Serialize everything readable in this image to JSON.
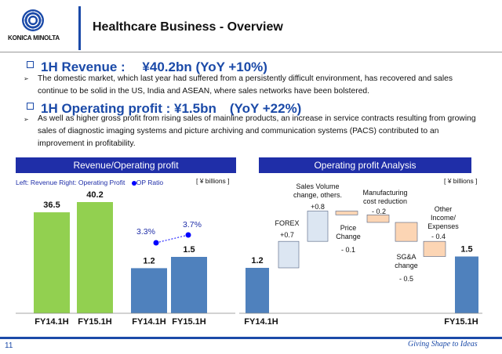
{
  "logo": {
    "text": "KONICA MINOLTA"
  },
  "title": "Healthcare Business - Overview",
  "sections": [
    {
      "heading": "1H Revenue :　 ¥40.2bn  (YoY +10%)",
      "bullet": "The domestic market, which last year had suffered from a persistently difficult environment, has recovered and sales continue to be solid in the US, India and ASEAN, where sales networks have been bolstered."
    },
    {
      "heading": "1H Operating profit : ¥1.5bn　(YoY +22%)",
      "bullet": "As well as higher gross profit from rising sales of mainline products, an increase in service contracts resulting from growing sales of diagnostic imaging systems and picture archiving and communication systems (PACS) contributed to an improvement in profitability."
    }
  ],
  "left_panel": {
    "title": "Revenue/Operating profit",
    "legend": "Left: Revenue  Right: Operating Profit",
    "legend_dot": "OP Ratio",
    "unit": "[ ¥ billions ]"
  },
  "right_panel": {
    "title": "Operating profit Analysis",
    "unit": "[ ¥ billions ]"
  },
  "chart_data": [
    {
      "type": "bar",
      "categories": [
        "FY14.1H",
        "FY15.1H"
      ],
      "series": [
        {
          "values": [
            36.5,
            40.2
          ],
          "color": "#92d050"
        }
      ],
      "labels": [
        "36.5",
        "40.2"
      ]
    },
    {
      "type": "bar",
      "categories": [
        "FY14.1H",
        "FY15.1H"
      ],
      "series": [
        {
          "values": [
            1.2,
            1.5
          ],
          "color": "#4f81bd"
        },
        {
          "name": "OP Ratio",
          "values": [
            3.3,
            3.7
          ],
          "color": "#0000ff"
        }
      ],
      "labels": [
        "1.2",
        "1.5"
      ],
      "ratio_labels": [
        "3.3%",
        "3.7%"
      ]
    },
    {
      "type": "bar",
      "subtype": "waterfall",
      "steps": [
        {
          "label": "FY14.1H",
          "value": 1.2,
          "kind": "total",
          "value_label": "1.2"
        },
        {
          "label": "FOREX",
          "value": 0.7,
          "kind": "up",
          "value_label": "+0.7"
        },
        {
          "label": "Sales Volume change, others.",
          "value": 0.8,
          "kind": "up",
          "value_label": "+0.8"
        },
        {
          "label": "Price Change",
          "value": -0.1,
          "kind": "down",
          "value_label": "- 0.1"
        },
        {
          "label": "Manufacturing cost reduction",
          "value": -0.2,
          "kind": "down",
          "value_label": "- 0.2"
        },
        {
          "label": "SG&A change",
          "value": -0.5,
          "kind": "down",
          "value_label": "- 0.5"
        },
        {
          "label": "Other Income/ Expenses",
          "value": -0.4,
          "kind": "down",
          "value_label": "- 0.4"
        },
        {
          "label": "FY15.1H",
          "value": 1.5,
          "kind": "total",
          "value_label": "1.5"
        }
      ],
      "colors": {
        "total": "#4f81bd",
        "up": "#dce6f2",
        "down": "#fcd5b4"
      }
    }
  ],
  "footer": {
    "page": "11",
    "tagline": "Giving Shape to Ideas"
  }
}
